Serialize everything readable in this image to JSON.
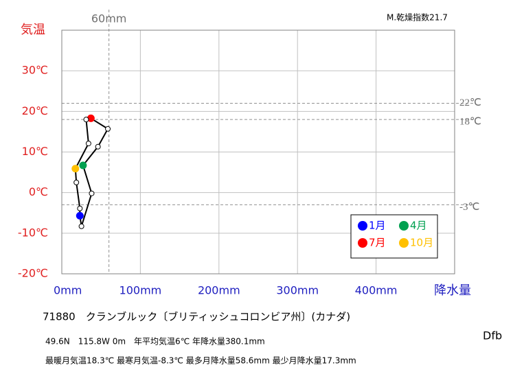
{
  "chart_data": {
    "type": "line",
    "index_label": "M.乾燥指数21.7",
    "y_label": "気温",
    "x_label": "降水量",
    "x": [
      23,
      25,
      38,
      27,
      46,
      58.6,
      37,
      31,
      34,
      17.3,
      18.5,
      23
    ],
    "values": [
      -5.7,
      -8.3,
      -0.2,
      6.7,
      11.3,
      15.7,
      18.3,
      18,
      12.1,
      5.9,
      2.5,
      -3.9
    ],
    "highlights": [
      {
        "name": "1月",
        "color": "#0000ff"
      },
      {
        "name": "4月",
        "color": "#00a050"
      },
      {
        "name": "7月",
        "color": "#ff0000"
      },
      {
        "name": "10月",
        "color": "#ffc000"
      }
    ],
    "xlim": [
      0,
      500
    ],
    "ylim": [
      -20,
      40
    ],
    "xticks": [
      {
        "value": 0,
        "label": "0mm"
      },
      {
        "value": 100,
        "label": "100mm"
      },
      {
        "value": 200,
        "label": "200mm"
      },
      {
        "value": 300,
        "label": "300mm"
      },
      {
        "value": 400,
        "label": "400mm"
      }
    ],
    "yticks": [
      {
        "value": -20,
        "label": "-20℃"
      },
      {
        "value": -10,
        "label": "-10℃"
      },
      {
        "value": 0,
        "label": "0℃"
      },
      {
        "value": 10,
        "label": "10℃"
      },
      {
        "value": 20,
        "label": "20℃"
      },
      {
        "value": 30,
        "label": "30℃"
      }
    ],
    "hlines": [
      {
        "value": 22,
        "label": "22℃"
      },
      {
        "value": 18,
        "label": "18℃"
      },
      {
        "value": -3,
        "label": "-3℃"
      }
    ],
    "vlines": [
      {
        "value": 60,
        "label": "60mm"
      }
    ],
    "grid": true,
    "station": "71880　クランブルック〔ブリティッシュコロンビア州〕(カナダ)",
    "info1": "49.6N　115.8W 0m　年平均気温6℃ 年降水量380.1mm",
    "info2": "最暖月気温18.3℃ 最寒月気温-8.3℃ 最多月降水量58.6mm 最少月降水量17.3mm",
    "climate": "Dfb"
  }
}
